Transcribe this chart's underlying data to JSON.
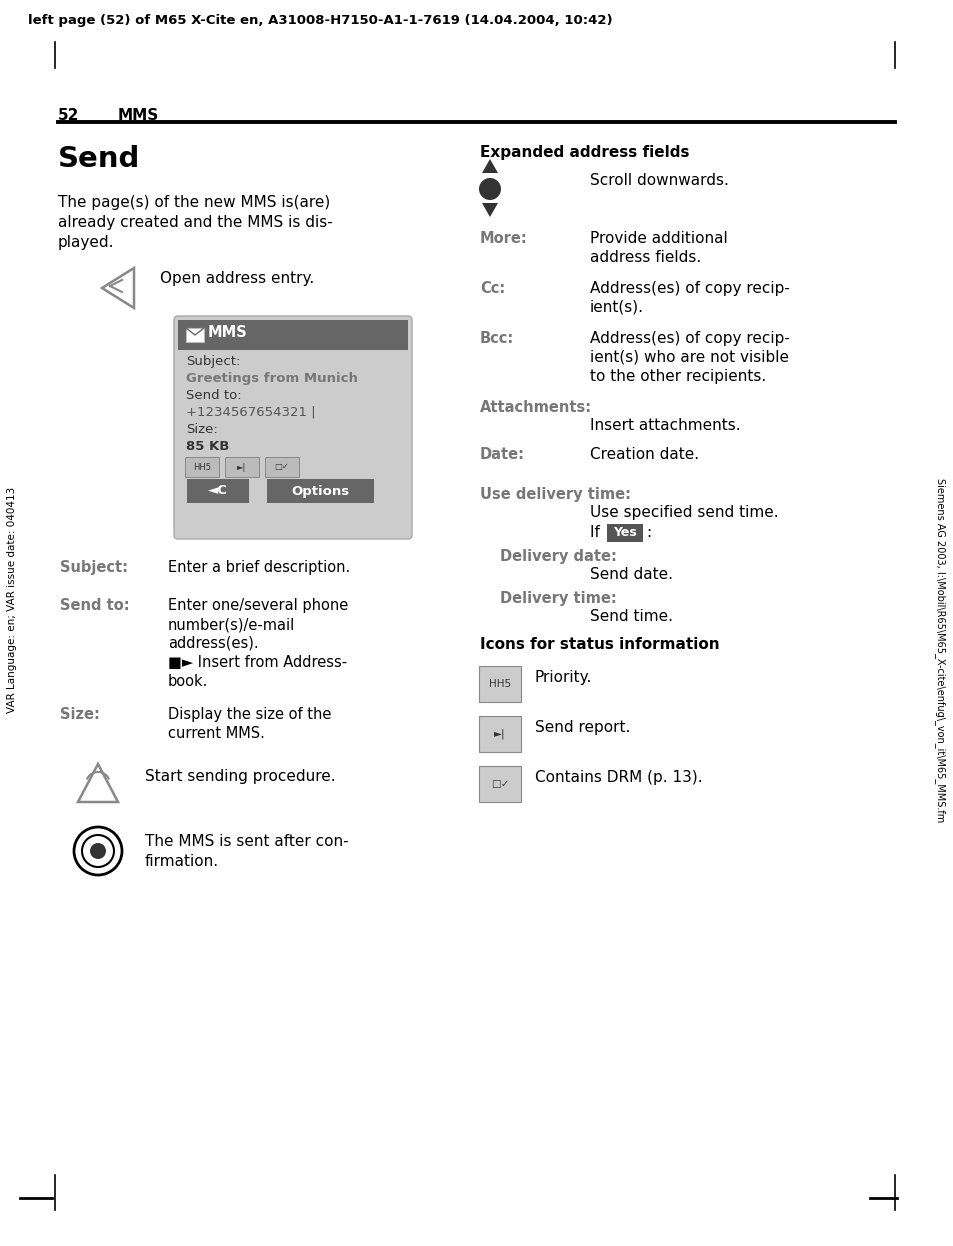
{
  "page_header": "left page (52) of M65 X-Cite en, A31008-H7150-A1-1-7619 (14.04.2004, 10:42)",
  "page_num": "52",
  "section": "MMS",
  "title": "Send",
  "intro_lines": [
    "The page(s) of the new MMS is(are)",
    "already created and the MMS is dis-",
    "played."
  ],
  "open_addr": "Open address entry.",
  "screen_header": "MMS",
  "screen_subject_label": "Subject:",
  "screen_subject_val": "Greetings from Munich",
  "screen_sendto_label": "Send to:",
  "screen_sendto_val": "+1234567654321 |",
  "screen_size_label": "Size:",
  "screen_size_val": "85 KB",
  "screen_btn_back": "◄C",
  "screen_btn_options": "Options",
  "left_items": [
    {
      "label": "Subject:",
      "text": "Enter a brief description.",
      "lines": 1
    },
    {
      "label": "Send to:",
      "text": "Enter one/several phone\nnumber(s)/e-mail\naddress(es).\n■► Insert from Address-\nbook.",
      "lines": 5
    },
    {
      "label": "Size:",
      "text": "Display the size of the\ncurrent MMS.",
      "lines": 2
    }
  ],
  "start_sending": "Start sending procedure.",
  "mms_sent_lines": [
    "The MMS is sent after con-",
    "firmation."
  ],
  "right_title": "Expanded address fields",
  "scroll_text": "Scroll downwards.",
  "right_items": [
    {
      "label": "More:",
      "text": "Provide additional\naddress fields.",
      "lines": 2
    },
    {
      "label": "Cc:",
      "text": "Address(es) of copy recip-\nient(s).",
      "lines": 2
    },
    {
      "label": "Bcc:",
      "text": "Address(es) of copy recip-\nient(s) who are not visible\nto the other recipients.",
      "lines": 3
    },
    {
      "label": "Attachments:",
      "text": "Insert attachments.",
      "lines": 1,
      "label_only_line": true
    },
    {
      "label": "Date:",
      "text": "Creation date.",
      "lines": 1
    },
    {
      "label": "Use delivery time:",
      "text": "",
      "lines": 0,
      "label_only_line": true
    }
  ],
  "delivery_sub": [
    {
      "label": "",
      "text": "Use specified send time."
    },
    {
      "label": "",
      "text": "If [Yes]:"
    },
    {
      "label": "Delivery date:",
      "text": "Send date."
    },
    {
      "label": "Delivery time:",
      "text": "Send time."
    }
  ],
  "icons_title": "Icons for status information",
  "icon_items": [
    {
      "text": "Priority."
    },
    {
      "text": "Send report."
    },
    {
      "text": "Contains DRM (p. 13)."
    }
  ],
  "left_sidebar": "VAR Language: en; VAR issue date: 040413",
  "right_sidebar": "Siemens AG 2003, I:\\Mobil\\R65\\M65_X-cite\\enfug\\_von_it\\M65_MMS.fm",
  "mms_header_bg": "#666666",
  "mms_body_bg": "#cccccc",
  "btn_bg": "#666666",
  "yes_bg": "#555555",
  "label_color": "#777777",
  "text_color": "#000000",
  "bg_color": "#ffffff"
}
